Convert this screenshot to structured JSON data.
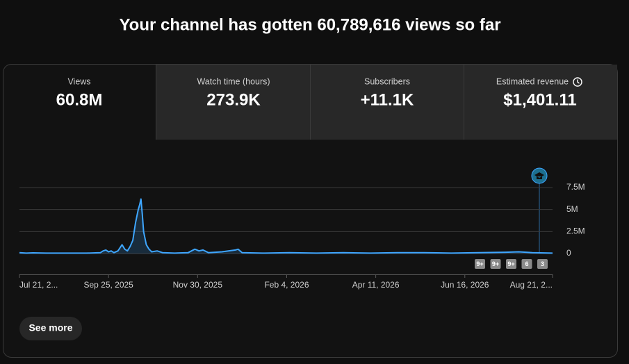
{
  "header": {
    "title": "Your channel has gotten 60,789,616 views so far"
  },
  "tabs": [
    {
      "label": "Views",
      "value": "60.8M"
    },
    {
      "label": "Watch time (hours)",
      "value": "273.9K"
    },
    {
      "label": "Subscribers",
      "value": "+11.1K"
    },
    {
      "label": "Estimated revenue",
      "value": "$1,401.11"
    }
  ],
  "chart_data": {
    "type": "line",
    "x": [
      0,
      5,
      10,
      20,
      30,
      40,
      50,
      60,
      62,
      64,
      66,
      68,
      70,
      73,
      76,
      78,
      80,
      82,
      84,
      86,
      88,
      89,
      90,
      91,
      92,
      94,
      96,
      98,
      102,
      106,
      115,
      125,
      130,
      133,
      136,
      140,
      150,
      160,
      162,
      165,
      180,
      200,
      220,
      240,
      260,
      280,
      300,
      320,
      340,
      360,
      370,
      380,
      395
    ],
    "series": [
      {
        "name": "Views",
        "color": "#3ea6ff",
        "values": [
          100000,
          50000,
          80000,
          50000,
          50000,
          50000,
          50000,
          100000,
          300000,
          400000,
          200000,
          300000,
          100000,
          300000,
          1000000,
          500000,
          300000,
          800000,
          1500000,
          3500000,
          5000000,
          5500000,
          6200000,
          4500000,
          2500000,
          1000000,
          500000,
          200000,
          300000,
          100000,
          50000,
          100000,
          500000,
          300000,
          400000,
          100000,
          200000,
          400000,
          500000,
          100000,
          50000,
          100000,
          50000,
          100000,
          50000,
          100000,
          100000,
          50000,
          100000,
          150000,
          200000,
          100000,
          50000
        ]
      }
    ],
    "xlim": [
      0,
      395
    ],
    "xticks": [
      {
        "value": 0,
        "label": "Jul 21, 2..."
      },
      {
        "value": 66,
        "label": "Sep 25, 2025"
      },
      {
        "value": 132,
        "label": "Nov 30, 2025"
      },
      {
        "value": 198,
        "label": "Feb 4, 2026"
      },
      {
        "value": 264,
        "label": "Apr 11, 2026"
      },
      {
        "value": 330,
        "label": "Jun 16, 2026"
      },
      {
        "value": 396,
        "label": "Aug 21, 2..."
      }
    ],
    "ylim": [
      0,
      7500000
    ],
    "yticks": [
      {
        "value": 0,
        "label": "0"
      },
      {
        "value": 2500000,
        "label": "2.5M"
      },
      {
        "value": 5000000,
        "label": "5M"
      },
      {
        "value": 7500000,
        "label": "7.5M"
      }
    ],
    "grid": true,
    "annotations": [
      "9+",
      "9+",
      "9+",
      "6",
      "3"
    ]
  },
  "button": "See more"
}
